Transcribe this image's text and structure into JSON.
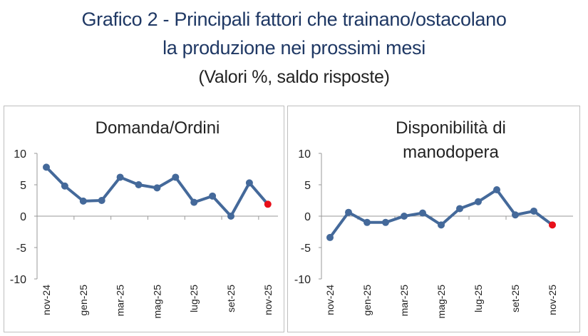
{
  "title": {
    "line1": "Grafico 2 - Principali fattori che trainano/ostacolano",
    "line2": "la produzione nei prossimi mesi",
    "line3": "(Valori %, saldo risposte)"
  },
  "chart_data": [
    {
      "type": "line",
      "title": "Domanda/Ordini",
      "ylim": [
        -10,
        10
      ],
      "yticks": [
        10,
        5,
        0,
        -5,
        -10
      ],
      "x": [
        "nov-24",
        "dic-24",
        "gen-25",
        "feb-25",
        "mar-25",
        "apr-25",
        "mag-25",
        "giu-25",
        "lug-25",
        "ago-25",
        "set-25",
        "ott-25",
        "nov-25"
      ],
      "xtick_labels": [
        "nov-24",
        "gen-25",
        "mar-25",
        "mag-25",
        "lug-25",
        "set-25",
        "nov-25"
      ],
      "values": [
        7.8,
        4.8,
        2.4,
        2.5,
        6.2,
        5.0,
        4.5,
        6.2,
        2.2,
        3.2,
        0.0,
        5.3,
        1.9
      ],
      "line_color": "#44699a",
      "last_point_color": "#e8101a"
    },
    {
      "type": "line",
      "title": "Disponibilità di manodopera",
      "title_lines": [
        "Disponibilità di",
        "manodopera"
      ],
      "ylim": [
        -10,
        10
      ],
      "yticks": [
        10,
        5,
        0,
        -5,
        -10
      ],
      "x": [
        "nov-24",
        "dic-24",
        "gen-25",
        "feb-25",
        "mar-25",
        "apr-25",
        "mag-25",
        "giu-25",
        "lug-25",
        "ago-25",
        "set-25",
        "ott-25",
        "nov-25"
      ],
      "xtick_labels": [
        "nov-24",
        "gen-25",
        "mar-25",
        "mag-25",
        "lug-25",
        "set-25",
        "nov-25"
      ],
      "values": [
        -3.4,
        0.6,
        -1.0,
        -1.0,
        0.0,
        0.5,
        -1.4,
        1.2,
        2.3,
        4.2,
        0.2,
        0.8,
        -1.4
      ],
      "line_color": "#44699a",
      "last_point_color": "#e8101a"
    }
  ]
}
